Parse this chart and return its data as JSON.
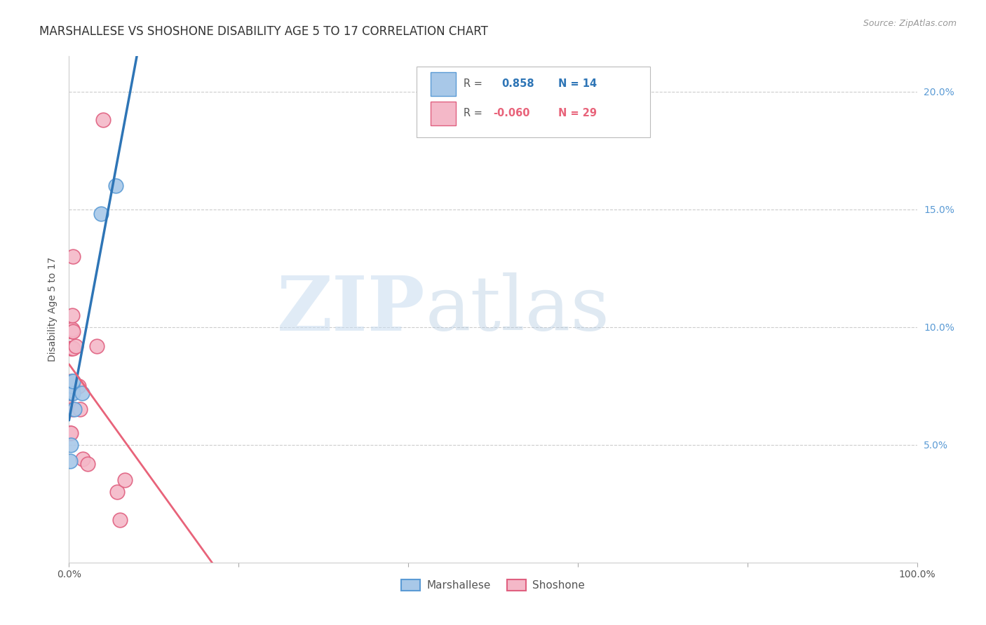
{
  "title": "MARSHALLESE VS SHOSHONE DISABILITY AGE 5 TO 17 CORRELATION CHART",
  "source": "Source: ZipAtlas.com",
  "ylabel": "Disability Age 5 to 17",
  "watermark_zip": "ZIP",
  "watermark_atlas": "atlas",
  "marshallese_R": 0.858,
  "marshallese_N": 14,
  "shoshone_R": -0.06,
  "shoshone_N": 29,
  "xlim": [
    0.0,
    1.0
  ],
  "ylim": [
    0.0,
    0.215
  ],
  "yticks": [
    0.05,
    0.1,
    0.15,
    0.2
  ],
  "ytick_labels": [
    "5.0%",
    "10.0%",
    "15.0%",
    "20.0%"
  ],
  "marshallese_color": "#A8C8E8",
  "marshallese_edge": "#5B9BD5",
  "shoshone_color": "#F4B8C8",
  "shoshone_edge": "#E06080",
  "trend_blue": "#2E75B6",
  "trend_pink": "#E8637A",
  "background_color": "#FFFFFF",
  "grid_color": "#CCCCCC",
  "right_tick_color": "#5B9BD5",
  "marshallese_x": [
    0.001,
    0.002,
    0.003,
    0.003,
    0.003,
    0.004,
    0.004,
    0.004,
    0.005,
    0.005,
    0.006,
    0.015,
    0.038,
    0.055
  ],
  "marshallese_y": [
    0.043,
    0.05,
    0.072,
    0.073,
    0.075,
    0.073,
    0.075,
    0.077,
    0.072,
    0.077,
    0.065,
    0.072,
    0.148,
    0.16
  ],
  "shoshone_x": [
    0.001,
    0.001,
    0.001,
    0.002,
    0.002,
    0.002,
    0.002,
    0.003,
    0.003,
    0.003,
    0.003,
    0.004,
    0.004,
    0.004,
    0.004,
    0.005,
    0.005,
    0.005,
    0.005,
    0.008,
    0.011,
    0.013,
    0.016,
    0.022,
    0.033,
    0.04,
    0.057,
    0.06,
    0.066
  ],
  "shoshone_y": [
    0.055,
    0.072,
    0.075,
    0.055,
    0.072,
    0.077,
    0.091,
    0.073,
    0.075,
    0.091,
    0.098,
    0.065,
    0.072,
    0.099,
    0.105,
    0.075,
    0.091,
    0.098,
    0.13,
    0.092,
    0.075,
    0.065,
    0.044,
    0.042,
    0.092,
    0.188,
    0.03,
    0.018,
    0.035
  ]
}
